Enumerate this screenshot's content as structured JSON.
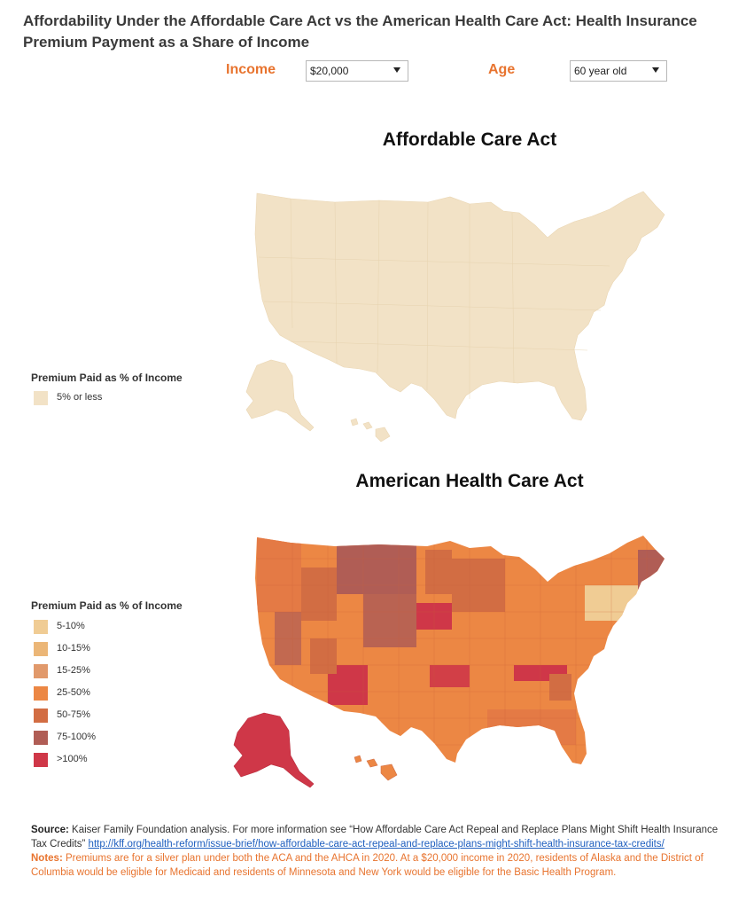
{
  "header": {
    "title": "Affordability Under the Affordable Care Act vs the American Health Care Act: Health Insurance Premium Payment as a Share of Income"
  },
  "controls": {
    "income_label": "Income",
    "income_value": "$20,000",
    "age_label": "Age",
    "age_value": "60 year old"
  },
  "aca": {
    "title": "Affordable Care Act",
    "legend_title": "Premium Paid  as % of Income",
    "legend": [
      {
        "label": "5% or less",
        "color": "#f2e2c6"
      }
    ]
  },
  "ahca": {
    "title": "American Health Care Act",
    "legend_title": "Premium Paid as % of Income",
    "legend": [
      {
        "label": "5-10%",
        "color": "#f0cc94"
      },
      {
        "label": "10-15%",
        "color": "#ebb677"
      },
      {
        "label": "15-25%",
        "color": "#e1996b"
      },
      {
        "label": "25-50%",
        "color": "#ec8744"
      },
      {
        "label": "50-75%",
        "color": "#d26d43"
      },
      {
        "label": "75-100%",
        "color": "#b05d55"
      },
      {
        "label": ">100%",
        "color": "#cf3748"
      }
    ]
  },
  "footer": {
    "source_label": "Source:",
    "source_text": " Kaiser Family Foundation analysis. For more information see “How Affordable Care Act Repeal and Replace Plans Might Shift Health Insurance Tax Credits” ",
    "source_link": "http://kff.org/health-reform/issue-brief/how-affordable-care-act-repeal-and-replace-plans-might-shift-health-insurance-tax-credits/",
    "notes_label": "Notes:",
    "notes_text": " Premiums are for a silver plan under both the ACA and the AHCA in 2020. At a $20,000 income in 2020, residents of Alaska and the District of Columbia would be eligible for Medicaid and residents of Minnesota and New York would be eligible for the Basic Health Program."
  }
}
